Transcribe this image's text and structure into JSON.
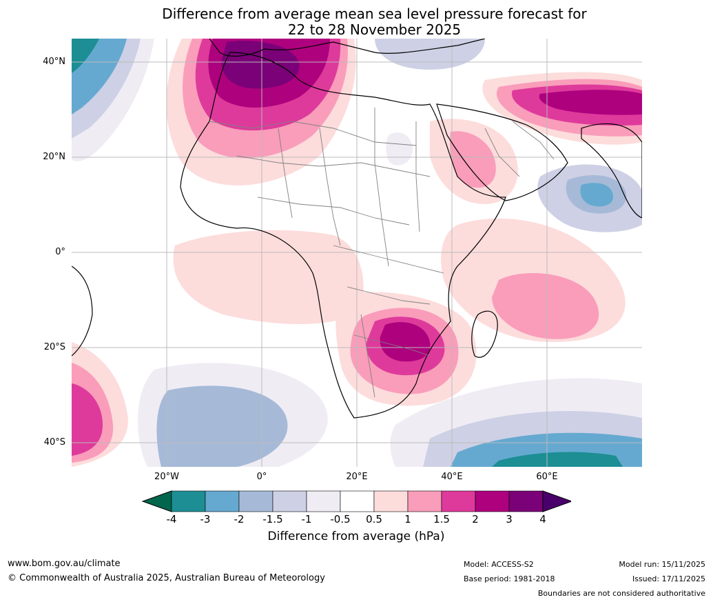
{
  "title": {
    "line1": "Difference from average mean sea level pressure forecast for",
    "line2": "22 to 28 November 2025"
  },
  "map": {
    "lat_labels": [
      "40°N",
      "20°N",
      "0°",
      "20°S",
      "40°S"
    ],
    "lon_labels": [
      "20°W",
      "0°",
      "20°E",
      "40°E",
      "60°E"
    ]
  },
  "legend": {
    "ticks": [
      "-4",
      "-3",
      "-2",
      "-1.5",
      "-1",
      "-0.5",
      "0.5",
      "1",
      "1.5",
      "2",
      "3",
      "4"
    ],
    "colors": [
      "#01664c",
      "#1c8e94",
      "#65a9d0",
      "#a6bad8",
      "#ced0e5",
      "#efecf4",
      "#ffffff",
      "#fddcdc",
      "#f99dba",
      "#de3a9b",
      "#ae017e",
      "#7a0177",
      "#49006a"
    ],
    "title": "Difference from average (hPa)"
  },
  "footer": {
    "website": "www.bom.gov.au/climate",
    "copyright": "© Commonwealth of Australia 2025, Australian Bureau of Meteorology",
    "model": "Model: ACCESS-S2",
    "base_period": "Base period: 1981-2018",
    "model_run": "Model run: 15/11/2025",
    "issued": "Issued: 17/11/2025",
    "boundaries_note": "Boundaries are not considered authoritative"
  }
}
